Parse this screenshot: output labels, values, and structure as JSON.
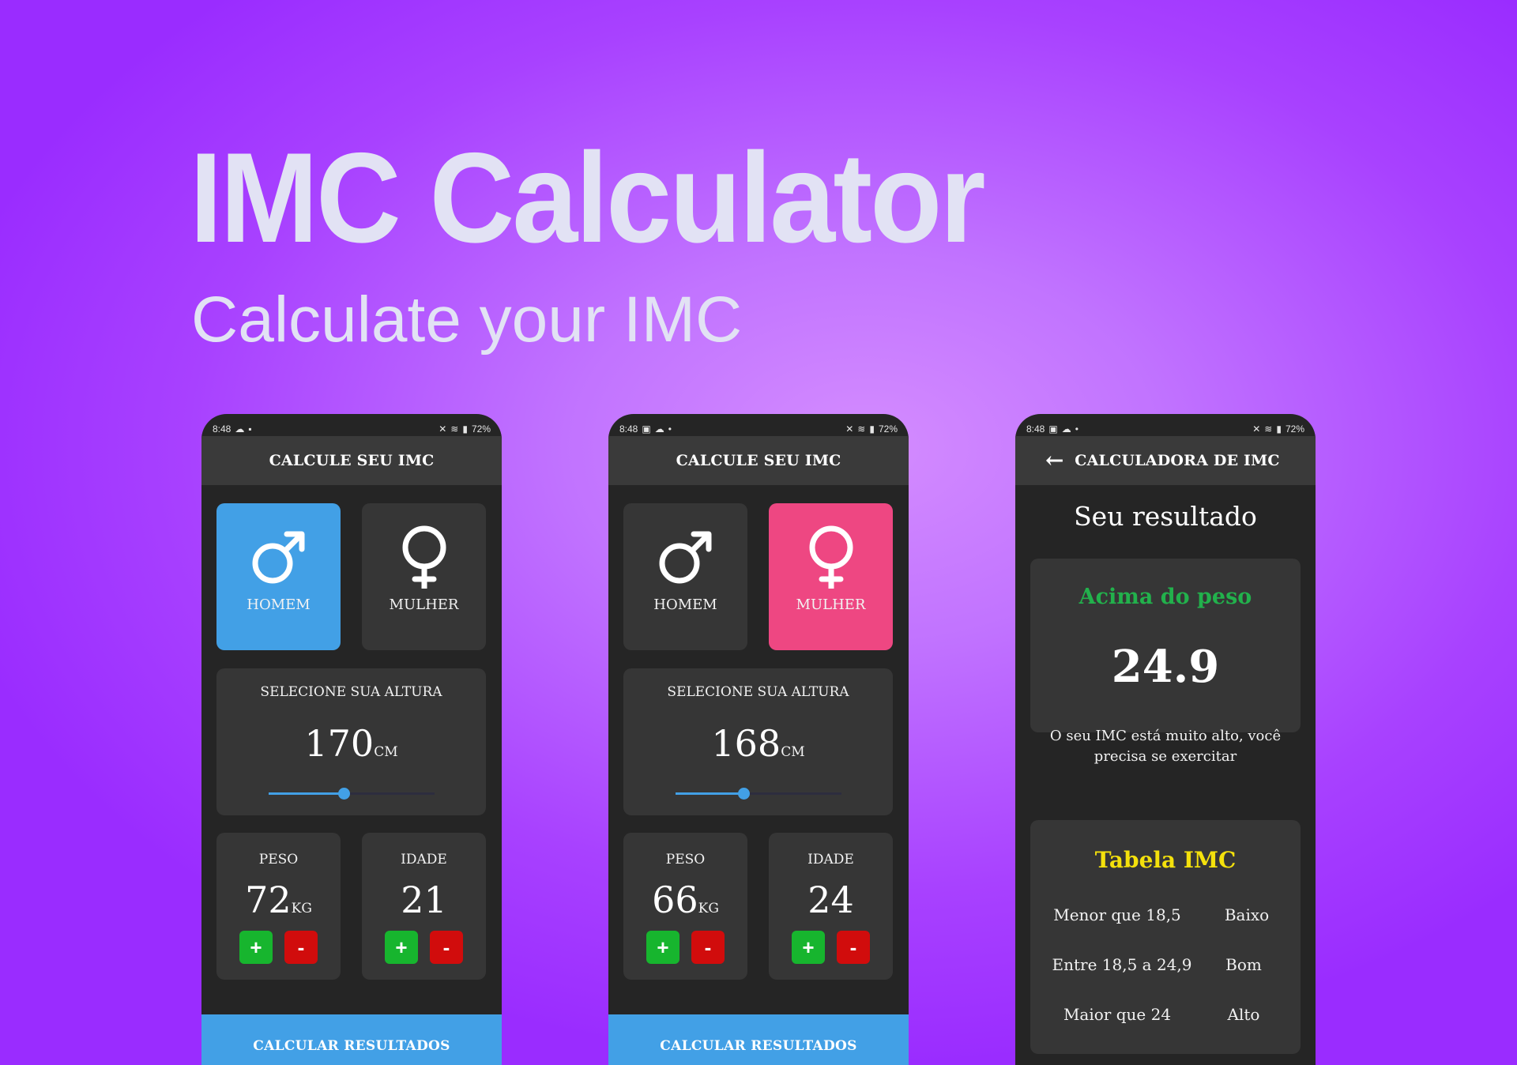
{
  "hero": {
    "title": "IMC Calculator",
    "subtitle": "Calculate your IMC"
  },
  "colors": {
    "male_active": "#42a0e6",
    "female_active": "#ee4782",
    "plus_button": "#17b52e",
    "minus_button": "#d10c0c",
    "status_text": "#22b14c",
    "table_title": "#f4e10c"
  },
  "phones": [
    {
      "status": {
        "time": "8:48",
        "battery": "72%"
      },
      "appbar_title": "CALCULE SEU IMC",
      "gender": {
        "male_label": "HOMEM",
        "female_label": "MULHER",
        "selected": "male"
      },
      "height": {
        "label": "SELECIONE SUA ALTURA",
        "value": "170",
        "unit": "CM",
        "slider_fraction": 0.45
      },
      "weight": {
        "label": "PESO",
        "value": "72",
        "unit": "KG"
      },
      "age": {
        "label": "IDADE",
        "value": "21"
      },
      "buttons": {
        "plus": "+",
        "minus": "-"
      },
      "calculate_label": "CALCULAR RESULTADOS"
    },
    {
      "status": {
        "time": "8:48",
        "battery": "72%"
      },
      "appbar_title": "CALCULE SEU IMC",
      "gender": {
        "male_label": "HOMEM",
        "female_label": "MULHER",
        "selected": "female"
      },
      "height": {
        "label": "SELECIONE SUA ALTURA",
        "value": "168",
        "unit": "CM",
        "slider_fraction": 0.41
      },
      "weight": {
        "label": "PESO",
        "value": "66",
        "unit": "KG"
      },
      "age": {
        "label": "IDADE",
        "value": "24"
      },
      "buttons": {
        "plus": "+",
        "minus": "-"
      },
      "calculate_label": "CALCULAR RESULTADOS"
    },
    {
      "status": {
        "time": "8:48",
        "battery": "72%"
      },
      "appbar_title": "CALCULADORA DE IMC",
      "back_icon": "arrow-left-icon",
      "result_title": "Seu resultado",
      "result": {
        "status": "Acima do peso",
        "value": "24.9",
        "message": "O seu IMC está muito alto, você precisa se exercitar"
      },
      "table": {
        "title": "Tabela IMC",
        "rows": [
          {
            "range": "Menor que 18,5",
            "label": "Baixo"
          },
          {
            "range": "Entre 18,5 a 24,9",
            "label": "Bom"
          },
          {
            "range": "Maior que 24",
            "label": "Alto"
          }
        ]
      }
    }
  ]
}
